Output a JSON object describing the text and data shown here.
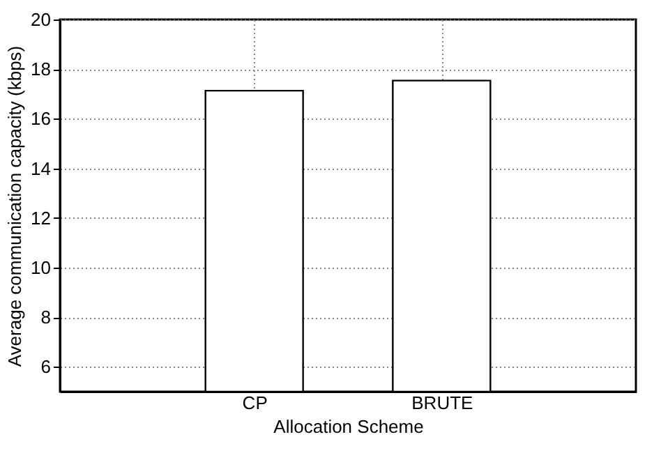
{
  "chart_data": {
    "type": "bar",
    "xlabel": "Allocation Scheme",
    "ylabel": "Average communication capacity (kbps)",
    "categories": [
      "CP",
      "BRUTE"
    ],
    "values": [
      17.13,
      17.54
    ],
    "color": "#ffffff",
    "ylim": [
      5,
      20
    ],
    "yticks": [
      6,
      8,
      10,
      12,
      14,
      16,
      18,
      20
    ],
    "grid": true
  }
}
